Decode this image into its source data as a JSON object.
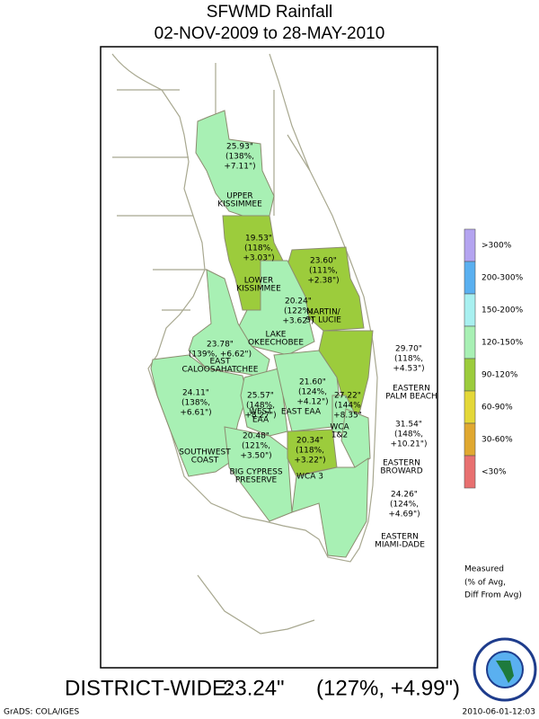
{
  "title": "SFWMD Rainfall",
  "subtitle": "02-NOV-2009 to 28-MAY-2010",
  "regions": [
    {
      "name": [
        "UPPER",
        "KISSIMMEE"
      ],
      "lines": [
        "25.93\"",
        "(138%,",
        "+7.11\")"
      ],
      "color": "#a8f0b4"
    },
    {
      "name": [
        "LOWER",
        "KISSIMMEE"
      ],
      "lines": [
        "19.53\"",
        "(118%,",
        "+3.03\")"
      ],
      "color": "#9ccc3c"
    },
    {
      "name": [
        "MARTIN/",
        "ST LUCIE"
      ],
      "lines": [
        "23.60\"",
        "(111%,",
        "+2.38\")"
      ],
      "color": "#9ccc3c"
    },
    {
      "name": [
        "LAKE",
        "OKEECHOBEE"
      ],
      "lines": [
        "20.24\"",
        "(122%,",
        "+3.62\")"
      ],
      "color": "#a8f0b4"
    },
    {
      "name": [
        "EAST",
        "CALOOSAHATCHEE"
      ],
      "lines": [
        "23.78\"",
        "(139%, +6.62\")"
      ],
      "color": "#a8f0b4"
    },
    {
      "name": [
        "EASTERN",
        "PALM BEACH"
      ],
      "lines": [
        "29.70\"",
        "(118%,",
        "+4.53\")"
      ],
      "color": "#9ccc3c"
    },
    {
      "name": [
        "SOUTHWEST",
        "COAST"
      ],
      "lines": [
        "24.11\"",
        "(138%,",
        "+6.61\")"
      ],
      "color": "#a8f0b4"
    },
    {
      "name": [
        "WEST",
        "EAA"
      ],
      "lines": [
        "25.57\"",
        "(148%,",
        "+8.27\")"
      ],
      "color": "#a8f0b4"
    },
    {
      "name": [
        "EAST EAA"
      ],
      "lines": [
        "21.60\"",
        "(124%,",
        "+4.12\")"
      ],
      "color": "#a8f0b4"
    },
    {
      "name": [
        "WCA",
        "1&2"
      ],
      "lines": [
        "27.22\"",
        "(144%",
        "+8.35\""
      ],
      "color": "#a8f0b4"
    },
    {
      "name": [
        "BIG CYPRESS",
        "PRESERVE"
      ],
      "lines": [
        "20.48\"",
        "(121%,",
        "+3.50\")"
      ],
      "color": "#a8f0b4"
    },
    {
      "name": [
        "WCA 3"
      ],
      "lines": [
        "20.34\"",
        "(118%,",
        "+3.22\")"
      ],
      "color": "#9ccc3c"
    },
    {
      "name": [
        "EASTERN",
        "BROWARD"
      ],
      "lines": [
        "31.54\"",
        "(148%,",
        "+10.21\")"
      ],
      "color": "#a8f0b4"
    },
    {
      "name": [
        "EASTERN",
        "MIAMI-DADE"
      ],
      "lines": [
        "24.26\"",
        "(124%,",
        "+4.69\")"
      ],
      "color": "#a8f0b4"
    }
  ],
  "legend": [
    {
      "label": ">300%",
      "color": "#b4a4f0"
    },
    {
      "label": "200-300%",
      "color": "#5ab0f0"
    },
    {
      "label": "150-200%",
      "color": "#a8f0f0"
    },
    {
      "label": "120-150%",
      "color": "#a8f0b4"
    },
    {
      "label": "90-120%",
      "color": "#9ccc3c"
    },
    {
      "label": "60-90%",
      "color": "#e4d838"
    },
    {
      "label": "30-60%",
      "color": "#e0a830"
    },
    {
      "label": "<30%",
      "color": "#e87070"
    }
  ],
  "note": [
    "Measured",
    "(% of Avg,",
    "Diff From Avg)"
  ],
  "district": {
    "label": "DISTRICT-WIDE:",
    "total": "23.24\"",
    "detail": "(127%, +4.99\")"
  },
  "footer_left": "GrADS: COLA/IGES",
  "footer_right": "2010-06-01-12:03"
}
